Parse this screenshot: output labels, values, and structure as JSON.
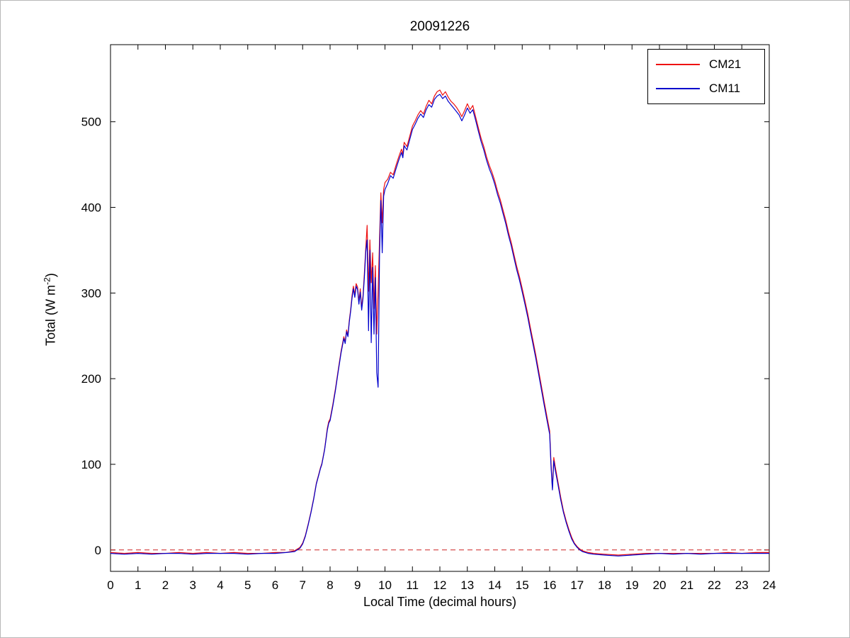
{
  "figure": {
    "title": "20091226"
  },
  "chart_data": {
    "type": "line",
    "title": "20091226",
    "xlabel": "Local Time (decimal hours)",
    "ylabel": "Total (W m^-2)",
    "ylabel_parts": {
      "prefix": "Total (W m",
      "sup": "-2",
      "suffix": ")"
    },
    "xlim": [
      0,
      24
    ],
    "ylim": [
      -25,
      590
    ],
    "xticks": [
      0,
      1,
      2,
      3,
      4,
      5,
      6,
      7,
      8,
      9,
      10,
      11,
      12,
      13,
      14,
      15,
      16,
      17,
      18,
      19,
      20,
      21,
      22,
      23,
      24
    ],
    "yticks": [
      0,
      100,
      200,
      300,
      400,
      500
    ],
    "grid": false,
    "legend": {
      "position": "northeast",
      "entries": [
        "CM21",
        "CM11"
      ]
    },
    "zero_line": {
      "y": 0,
      "style": "dashed",
      "color": "#cc2222"
    },
    "x": [
      0.0,
      0.5,
      1.0,
      1.5,
      2.0,
      2.5,
      3.0,
      3.5,
      4.0,
      4.5,
      5.0,
      5.5,
      6.0,
      6.4,
      6.7,
      6.9,
      7.0,
      7.1,
      7.2,
      7.3,
      7.4,
      7.5,
      7.6,
      7.65,
      7.7,
      7.8,
      7.9,
      7.95,
      8.0,
      8.1,
      8.2,
      8.3,
      8.4,
      8.5,
      8.55,
      8.6,
      8.65,
      8.7,
      8.75,
      8.8,
      8.85,
      8.9,
      8.95,
      9.0,
      9.05,
      9.1,
      9.15,
      9.2,
      9.25,
      9.3,
      9.35,
      9.4,
      9.45,
      9.5,
      9.55,
      9.6,
      9.65,
      9.7,
      9.75,
      9.8,
      9.85,
      9.9,
      9.95,
      10.0,
      10.1,
      10.2,
      10.3,
      10.4,
      10.5,
      10.6,
      10.65,
      10.7,
      10.8,
      10.9,
      11.0,
      11.1,
      11.2,
      11.3,
      11.4,
      11.5,
      11.6,
      11.7,
      11.8,
      11.9,
      12.0,
      12.1,
      12.2,
      12.3,
      12.4,
      12.5,
      12.6,
      12.7,
      12.8,
      12.9,
      13.0,
      13.1,
      13.2,
      13.3,
      13.4,
      13.5,
      13.6,
      13.7,
      13.8,
      13.9,
      14.0,
      14.1,
      14.2,
      14.3,
      14.4,
      14.5,
      14.6,
      14.7,
      14.8,
      14.9,
      15.0,
      15.1,
      15.2,
      15.3,
      15.4,
      15.5,
      15.6,
      15.7,
      15.8,
      15.9,
      16.0,
      16.05,
      16.1,
      16.15,
      16.2,
      16.3,
      16.4,
      16.5,
      16.6,
      16.7,
      16.8,
      16.9,
      17.0,
      17.1,
      17.2,
      17.4,
      17.6,
      18.0,
      18.5,
      19.0,
      19.5,
      20.0,
      20.5,
      21.0,
      21.5,
      22.0,
      22.5,
      23.0,
      23.5,
      24.0
    ],
    "series": [
      {
        "name": "CM21",
        "color": "#ee1111",
        "values": [
          -3,
          -4,
          -3,
          -4,
          -4,
          -3,
          -4,
          -3,
          -4,
          -3,
          -4,
          -4,
          -3,
          -3,
          -1,
          3,
          8,
          17,
          30,
          44,
          60,
          78,
          90,
          96,
          101,
          118,
          142,
          150,
          153,
          170,
          189,
          211,
          232,
          249,
          243,
          257,
          251,
          268,
          281,
          297,
          308,
          298,
          311,
          307,
          290,
          305,
          283,
          297,
          323,
          353,
          379,
          302,
          362,
          312,
          347,
          282,
          332,
          252,
          302,
          362,
          417,
          382,
          421,
          429,
          433,
          441,
          438,
          449,
          459,
          468,
          462,
          476,
          471,
          483,
          495,
          501,
          508,
          513,
          509,
          518,
          525,
          521,
          530,
          535,
          537,
          531,
          535,
          529,
          524,
          521,
          517,
          512,
          506,
          513,
          521,
          514,
          519,
          506,
          493,
          481,
          471,
          459,
          449,
          441,
          431,
          419,
          409,
          397,
          385,
          371,
          359,
          345,
          331,
          319,
          305,
          291,
          276,
          259,
          243,
          227,
          209,
          191,
          173,
          156,
          139,
          102,
          72,
          108,
          98,
          80,
          62,
          46,
          34,
          24,
          15,
          8,
          4,
          1,
          -1,
          -3,
          -4,
          -5,
          -6,
          -5,
          -4,
          -4,
          -4,
          -4,
          -4,
          -4,
          -3,
          -4,
          -3,
          -3
        ]
      },
      {
        "name": "CM11",
        "color": "#0000cc",
        "values": [
          -4,
          -5,
          -4,
          -5,
          -4,
          -4,
          -5,
          -4,
          -4,
          -4,
          -5,
          -4,
          -4,
          -3,
          -2,
          2,
          7,
          16,
          29,
          43,
          59,
          77,
          89,
          95,
          100,
          117,
          140,
          148,
          151,
          168,
          187,
          209,
          230,
          247,
          241,
          255,
          249,
          266,
          279,
          294,
          305,
          295,
          308,
          304,
          287,
          301,
          280,
          294,
          318,
          348,
          362,
          256,
          350,
          242,
          330,
          252,
          318,
          207,
          190,
          344,
          408,
          347,
          413,
          421,
          428,
          437,
          434,
          445,
          455,
          464,
          458,
          472,
          467,
          479,
          491,
          497,
          504,
          509,
          505,
          514,
          520,
          517,
          526,
          530,
          532,
          527,
          530,
          524,
          520,
          516,
          512,
          508,
          501,
          508,
          516,
          510,
          514,
          502,
          489,
          477,
          467,
          455,
          445,
          437,
          427,
          415,
          405,
          393,
          381,
          367,
          355,
          341,
          327,
          315,
          301,
          287,
          272,
          255,
          239,
          223,
          205,
          187,
          169,
          152,
          135,
          98,
          70,
          104,
          94,
          77,
          59,
          44,
          32,
          22,
          13,
          7,
          3,
          0,
          -2,
          -4,
          -5,
          -6,
          -7,
          -6,
          -5,
          -4,
          -5,
          -4,
          -5,
          -4,
          -4,
          -4,
          -4,
          -4
        ]
      }
    ]
  }
}
